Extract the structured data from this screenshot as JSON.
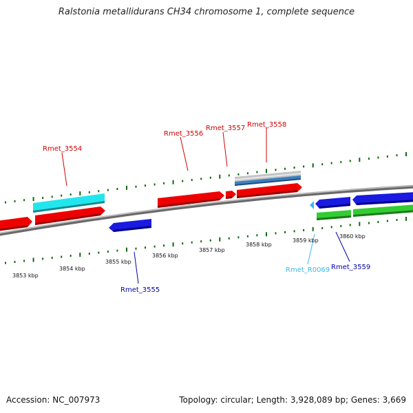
{
  "title": "Ralstonia metallidurans CH34 chromosome 1, complete sequence",
  "footer": {
    "accession": "Accession: NC_007973",
    "summary": "Topology: circular; Length: 3,928,089 bp; Genes: 3,669"
  },
  "colors": {
    "forward_gene": "#ee0000",
    "reverse_gene": "#1111dd",
    "cyan_feature": "#22e6ee",
    "green_feature": "#33cc33",
    "grey_feature": "#bbbbbb",
    "steel_feature": "#3377bb",
    "backbone": "#808080",
    "tick": "#116611",
    "label_forward": "#cc0000",
    "label_reverse": "#0000aa",
    "label_rna": "#33bbee"
  },
  "scale": {
    "ticks": [
      {
        "label": "3853 kbp"
      },
      {
        "label": "3854 kbp"
      },
      {
        "label": "3855 kbp"
      },
      {
        "label": "3856 kbp"
      },
      {
        "label": "3857 kbp"
      },
      {
        "label": "3858 kbp"
      },
      {
        "label": "3859 kbp"
      },
      {
        "label": "3860 kbp"
      }
    ]
  },
  "genes": [
    {
      "id": "Rmet_3554",
      "strand": "forward"
    },
    {
      "id": "Rmet_3555",
      "strand": "reverse"
    },
    {
      "id": "Rmet_3556",
      "strand": "forward"
    },
    {
      "id": "Rmet_3557",
      "strand": "forward"
    },
    {
      "id": "Rmet_3558",
      "strand": "forward"
    },
    {
      "id": "Rmet_R0069",
      "strand": "reverse",
      "type": "rna"
    },
    {
      "id": "Rmet_3559",
      "strand": "reverse"
    }
  ]
}
